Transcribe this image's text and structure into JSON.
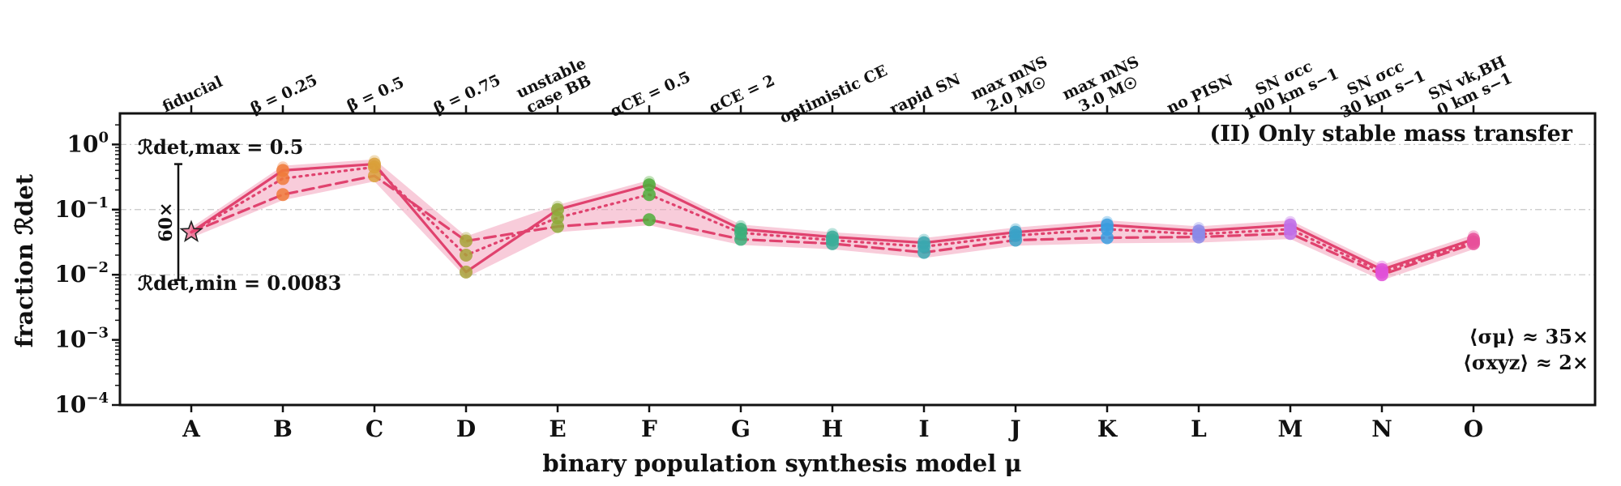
{
  "chart_data": {
    "type": "line",
    "title": "(II) Only stable mass transfer",
    "xlabel": "binary population synthesis model μ",
    "ylabel": "fraction ℛdet",
    "yscale": "log",
    "ylim": [
      0.0001,
      3
    ],
    "yticks": [
      {
        "value": 1,
        "base": "10",
        "exp": "0"
      },
      {
        "value": 0.1,
        "base": "10",
        "exp": "−1"
      },
      {
        "value": 0.01,
        "base": "10",
        "exp": "−2"
      },
      {
        "value": 0.001,
        "base": "10",
        "exp": "−3"
      },
      {
        "value": 0.0001,
        "base": "10",
        "exp": "−4"
      }
    ],
    "grid": "horizontal dash-dot at decades",
    "categories": [
      "A",
      "B",
      "C",
      "D",
      "E",
      "F",
      "G",
      "H",
      "I",
      "J",
      "K",
      "L",
      "M",
      "N",
      "O"
    ],
    "model_names": [
      [
        "fiducial"
      ],
      [
        "β = 0.25"
      ],
      [
        "β = 0.5"
      ],
      [
        "β = 0.75"
      ],
      [
        "unstable",
        "case BB"
      ],
      [
        "αCE = 0.5"
      ],
      [
        "αCE = 2"
      ],
      [
        "optimistic CE"
      ],
      [
        "rapid SN"
      ],
      [
        "max mNS",
        "2.0 M☉"
      ],
      [
        "max mNS",
        "3.0 M☉"
      ],
      [
        "no PISN"
      ],
      [
        "SN σcc",
        "100 km s−1"
      ],
      [
        "SN σcc",
        "30 km s−1"
      ],
      [
        "SN vk,BH",
        "0 km s−1"
      ]
    ],
    "model_colors": [
      "#e8416f",
      "#f07a3a",
      "#d9a03a",
      "#a8a23a",
      "#8eaa3a",
      "#4fad3a",
      "#3ab07a",
      "#3aae9a",
      "#3aa8b0",
      "#3aa2c8",
      "#3a9ee0",
      "#8a8ae8",
      "#c070e8",
      "#e050d8",
      "#e8509a"
    ],
    "line_color": "#e0426e",
    "band_color": "#f2a3bb",
    "series": [
      {
        "style": "solid",
        "values": [
          0.045,
          0.4,
          0.5,
          0.011,
          0.1,
          0.24,
          0.05,
          0.038,
          0.031,
          0.045,
          0.058,
          0.047,
          0.058,
          0.012,
          0.035
        ]
      },
      {
        "style": "dotted",
        "values": [
          0.045,
          0.3,
          0.45,
          0.02,
          0.075,
          0.17,
          0.044,
          0.034,
          0.027,
          0.04,
          0.05,
          0.042,
          0.05,
          0.011,
          0.032
        ]
      },
      {
        "style": "dashed",
        "values": [
          0.045,
          0.17,
          0.33,
          0.033,
          0.055,
          0.07,
          0.035,
          0.03,
          0.022,
          0.034,
          0.037,
          0.038,
          0.043,
          0.01,
          0.03
        ]
      }
    ],
    "annotations": {
      "max_label": "ℛdet,max = 0.5",
      "min_label": "ℛdet,min = 0.0083",
      "range_label": "60×",
      "range_max": 0.5,
      "range_min": 0.0083,
      "sigma_mu": "⟨σμ⟩ ≈ 35×",
      "sigma_xyz": "⟨σxyz⟩ ≈ 2×"
    },
    "fiducial_marker": "star"
  }
}
